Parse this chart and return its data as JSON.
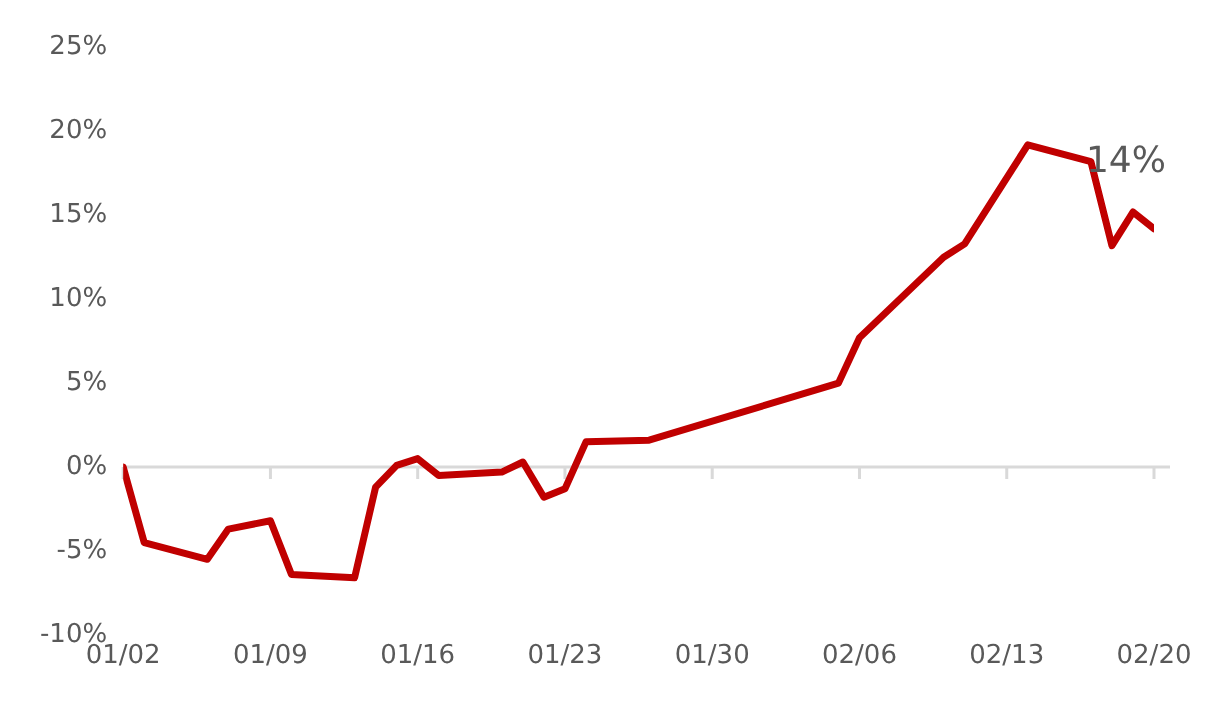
{
  "chart_data": {
    "type": "line",
    "x": [
      "--01-02",
      "--01-03",
      "--01-06",
      "--01-07",
      "--01-09",
      "--01-10",
      "--01-13",
      "--01-14",
      "--01-15",
      "--01-16",
      "--01-17",
      "--01-20",
      "--01-21",
      "--01-22",
      "--01-23",
      "--01-24",
      "--01-27",
      "--02-05",
      "--02-06",
      "--02-10",
      "--02-11",
      "--02-14",
      "--02-17",
      "--02-18",
      "--02-19",
      "--02-20"
    ],
    "series": [
      {
        "color": "#c00000",
        "values": [
          0,
          -4.5,
          -5.5,
          -3.7,
          -3.2,
          -6.4,
          -6.6,
          -1.2,
          0.1,
          0.5,
          -0.5,
          -0.3,
          0.3,
          -1.8,
          -1.3,
          1.5,
          1.6,
          5.0,
          7.7,
          12.5,
          13.3,
          19.2,
          18.2,
          13.2,
          15.2,
          14.2
        ]
      }
    ],
    "ylim": [
      -10,
      25
    ],
    "yticks": [
      {
        "value": -10,
        "label": "-10%"
      },
      {
        "value": -5,
        "label": "-5%"
      },
      {
        "value": 0,
        "label": "0%"
      },
      {
        "value": 5,
        "label": "5%"
      },
      {
        "value": 10,
        "label": "10%"
      },
      {
        "value": 15,
        "label": "15%"
      },
      {
        "value": 20,
        "label": "20%"
      },
      {
        "value": 25,
        "label": "25%"
      }
    ],
    "xlim": [
      "--01-02",
      "--02-20"
    ],
    "xticks": [
      {
        "value": "--01-02",
        "label": "01/02"
      },
      {
        "value": "--01-09",
        "label": "01/09"
      },
      {
        "value": "--01-16",
        "label": "01/16"
      },
      {
        "value": "--01-23",
        "label": "01/23"
      },
      {
        "value": "--01-30",
        "label": "01/30"
      },
      {
        "value": "--02-06",
        "label": "02/06"
      },
      {
        "value": "--02-13",
        "label": "02/13"
      },
      {
        "value": "--02-20",
        "label": "02/20"
      }
    ],
    "ref_lines": [
      {
        "axis": "y",
        "value": 0,
        "color": "#d9d9d9"
      }
    ],
    "annotations": [
      {
        "text": "14%",
        "x": "--02-20",
        "y": 14.2
      }
    ],
    "grid": false,
    "legend": false,
    "marker": "none",
    "line_style": "solid"
  }
}
